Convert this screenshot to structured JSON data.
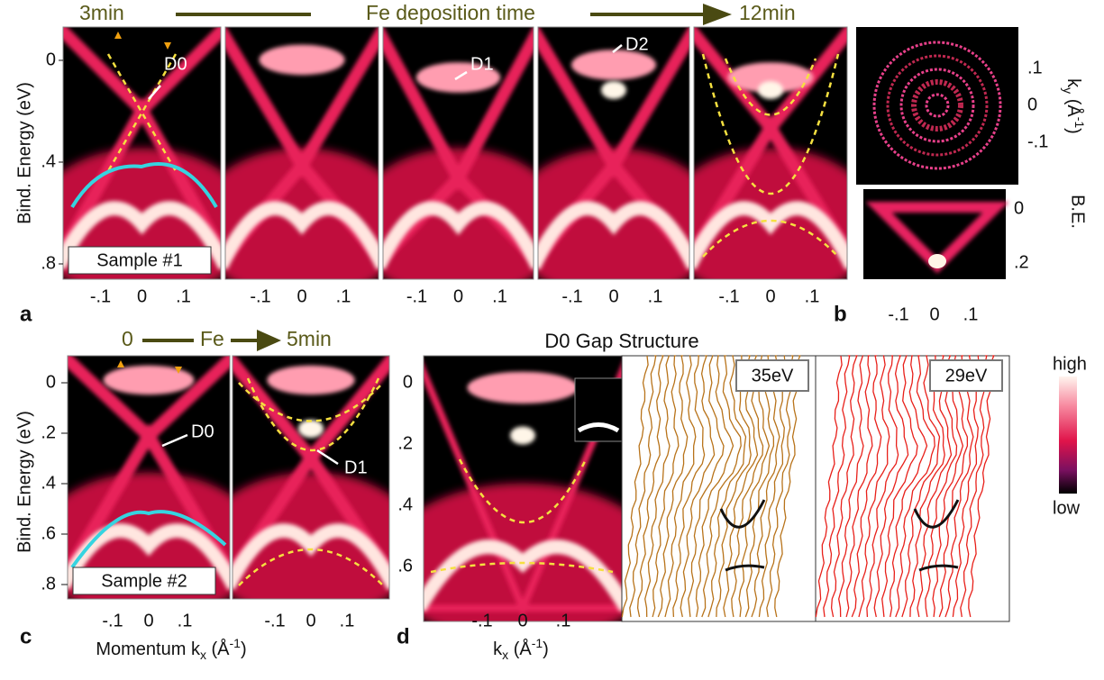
{
  "header": {
    "start": "3min",
    "middle": "Fe deposition time",
    "end": "12min"
  },
  "panel_a": {
    "label": "a",
    "y_title": "Bind. Energy (eV)",
    "yticks": [
      "0",
      ".4",
      ".8"
    ],
    "xticks": [
      "-.1",
      "0",
      ".1"
    ],
    "markers": [
      "D0",
      "D1",
      "D2"
    ],
    "sample": "Sample #1"
  },
  "panel_b": {
    "label": "b",
    "ky_title": {
      "k": "k",
      "sub": "y",
      "unit": " (Å",
      "sup": "-1",
      "close": ")"
    },
    "ky_ticks": [
      ".1",
      "0",
      "-.1"
    ],
    "be_title": "B.E.",
    "be_ticks": [
      "0",
      ".2"
    ],
    "xticks": [
      "-.1",
      "0",
      ".1"
    ]
  },
  "panel_c": {
    "label": "c",
    "header": {
      "start": "0",
      "middle": "Fe",
      "end": "5min"
    },
    "y_title": "Bind. Energy (eV)",
    "yticks": [
      "0",
      ".2",
      ".4",
      ".6",
      ".8"
    ],
    "xticks": [
      "-.1",
      "0",
      ".1"
    ],
    "markers": [
      "D0",
      "D1"
    ],
    "sample": "Sample #2",
    "x_title": {
      "k": "Momentum k",
      "sub": "x",
      "unit": " (Å",
      "sup": "-1",
      "close": ")"
    }
  },
  "panel_d": {
    "label": "d",
    "title": "D0 Gap Structure",
    "yticks": [
      "0",
      ".2",
      ".4",
      ".6"
    ],
    "xticks": [
      "-.1",
      "0",
      ".1"
    ],
    "photon_energies": [
      "35eV",
      "29eV"
    ],
    "x_title": {
      "k": "k",
      "sub": "x",
      "unit": " (Å",
      "sup": "-1",
      "close": ")"
    },
    "colorbar": {
      "high": "high",
      "low": "low"
    }
  }
}
